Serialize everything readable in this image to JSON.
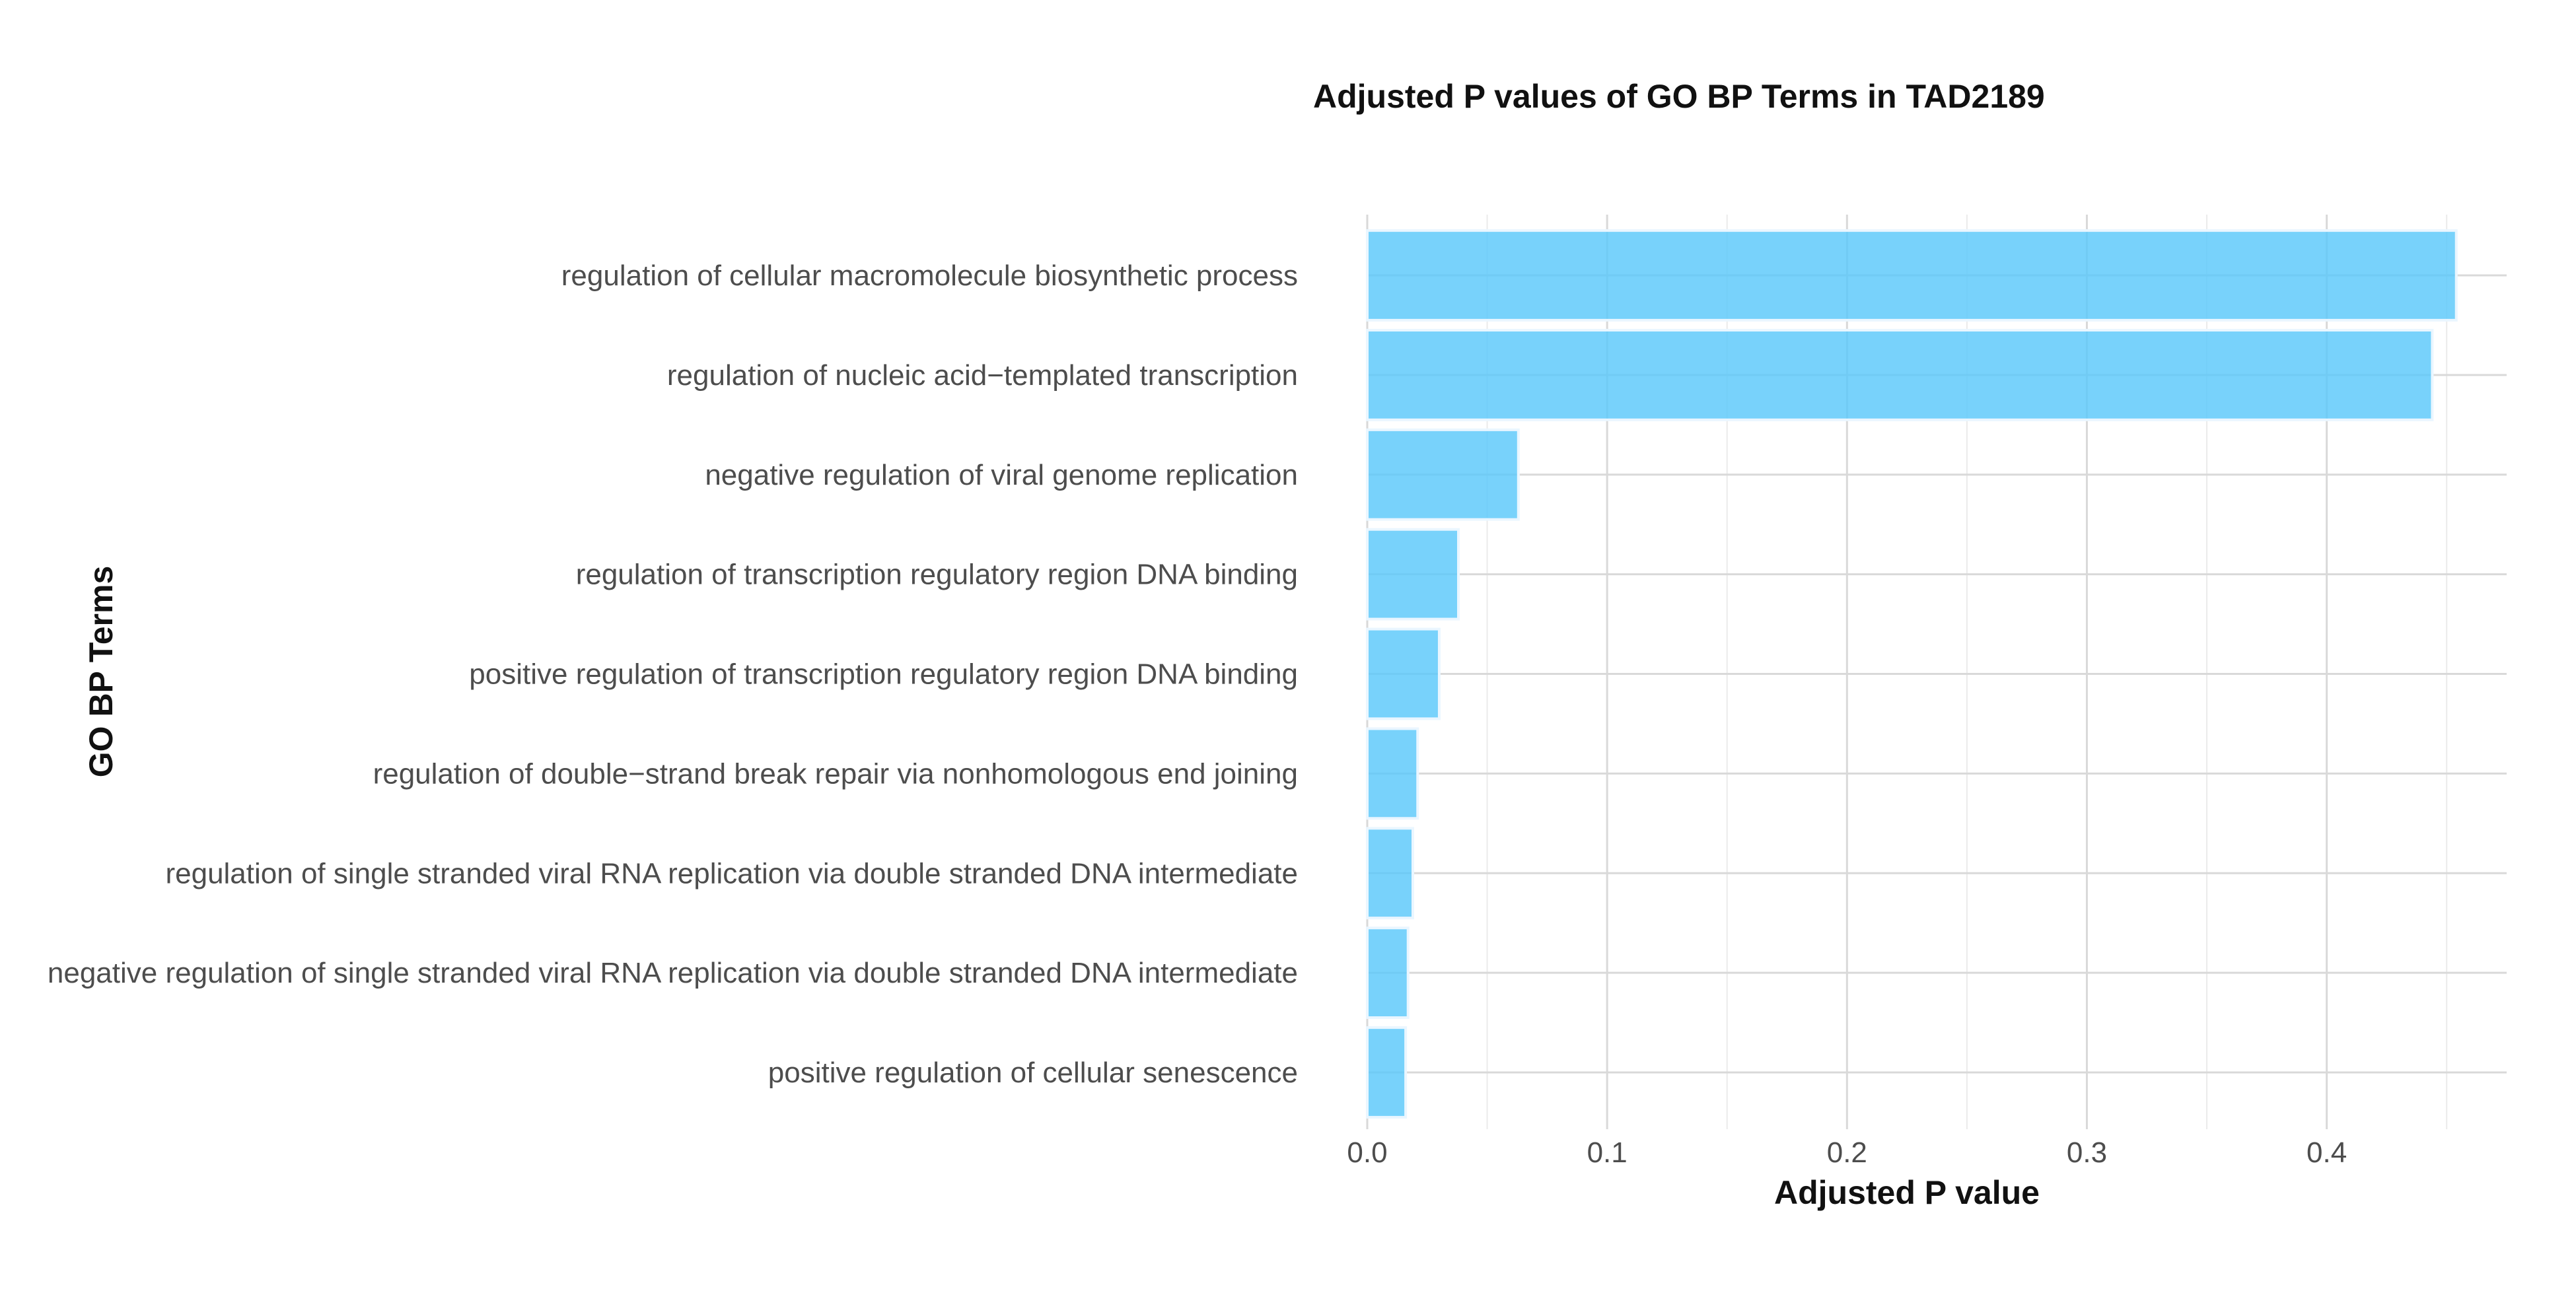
{
  "chart_data": {
    "type": "bar",
    "orientation": "horizontal",
    "title": "Adjusted P values of GO BP Terms in TAD2189",
    "xlabel": "Adjusted P value",
    "ylabel": "GO BP Terms",
    "xlim": [
      0,
      0.475
    ],
    "x_ticks": [
      0.0,
      0.1,
      0.2,
      0.3,
      0.4
    ],
    "x_tick_labels": [
      "0.0",
      "0.1",
      "0.2",
      "0.3",
      "0.4"
    ],
    "grid": true,
    "legend": "none",
    "bar_color": "#5ac8fa",
    "categories": [
      "regulation of cellular macromolecule biosynthetic process",
      "regulation of nucleic acid−templated transcription",
      "negative regulation of viral genome replication",
      "regulation of transcription regulatory region DNA binding",
      "positive regulation of transcription regulatory region DNA binding",
      "regulation of double−strand break repair via nonhomologous end joining",
      "regulation of single stranded viral RNA replication via double stranded DNA intermediate",
      "negative regulation of single stranded viral RNA replication via double stranded DNA intermediate",
      "positive regulation of cellular senescence"
    ],
    "values": [
      0.454,
      0.444,
      0.063,
      0.038,
      0.03,
      0.021,
      0.019,
      0.017,
      0.016
    ]
  }
}
